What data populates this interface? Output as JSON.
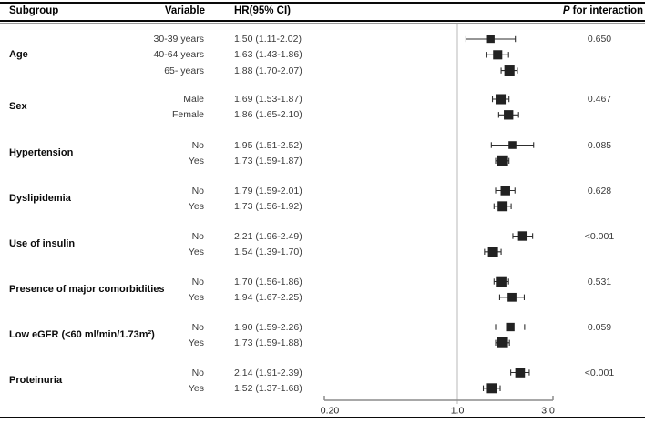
{
  "header": {
    "subgroup": "Subgroup",
    "variable": "Variable",
    "hr": "HR(95% CI)",
    "p_italic": "P",
    "p_rest": " for interaction"
  },
  "chart_data": {
    "type": "forest",
    "scale": "log",
    "xlim": [
      0.2,
      3.0
    ],
    "ref_line": 1.0,
    "x_ticks": [
      {
        "label": "0.20",
        "value": 0.2
      },
      {
        "label": "1.0",
        "value": 1.0
      },
      {
        "label": "3.0",
        "value": 3.0
      }
    ],
    "colors": {
      "marker": "#222222",
      "whisker": "#2e2e2e",
      "ref_line": "#b8b8b8",
      "axis": "#8c8c8c"
    },
    "groups": [
      {
        "subgroup": "Age",
        "p_for_interaction": "0.650",
        "rows": [
          {
            "variable": "30-39 years",
            "hr_text": "1.50 (1.11-2.02)",
            "hr": 1.5,
            "ci_low": 1.11,
            "ci_high": 2.02
          },
          {
            "variable": "40-64 years",
            "hr_text": "1.63 (1.43-1.86)",
            "hr": 1.63,
            "ci_low": 1.43,
            "ci_high": 1.86
          },
          {
            "variable": "65- years",
            "hr_text": "1.88 (1.70-2.07)",
            "hr": 1.88,
            "ci_low": 1.7,
            "ci_high": 2.07
          }
        ]
      },
      {
        "subgroup": "Sex",
        "p_for_interaction": "0.467",
        "rows": [
          {
            "variable": "Male",
            "hr_text": "1.69 (1.53-1.87)",
            "hr": 1.69,
            "ci_low": 1.53,
            "ci_high": 1.87
          },
          {
            "variable": "Female",
            "hr_text": "1.86 (1.65-2.10)",
            "hr": 1.86,
            "ci_low": 1.65,
            "ci_high": 2.1
          }
        ]
      },
      {
        "subgroup": "Hypertension",
        "p_for_interaction": "0.085",
        "rows": [
          {
            "variable": "No",
            "hr_text": "1.95 (1.51-2.52)",
            "hr": 1.95,
            "ci_low": 1.51,
            "ci_high": 2.52
          },
          {
            "variable": "Yes",
            "hr_text": "1.73 (1.59-1.87)",
            "hr": 1.73,
            "ci_low": 1.59,
            "ci_high": 1.87
          }
        ]
      },
      {
        "subgroup": "Dyslipidemia",
        "p_for_interaction": "0.628",
        "rows": [
          {
            "variable": "No",
            "hr_text": "1.79 (1.59-2.01)",
            "hr": 1.79,
            "ci_low": 1.59,
            "ci_high": 2.01
          },
          {
            "variable": "Yes",
            "hr_text": "1.73 (1.56-1.92)",
            "hr": 1.73,
            "ci_low": 1.56,
            "ci_high": 1.92
          }
        ]
      },
      {
        "subgroup": "Use of insulin",
        "p_for_interaction": "<0.001",
        "rows": [
          {
            "variable": "No",
            "hr_text": "2.21 (1.96-2.49)",
            "hr": 2.21,
            "ci_low": 1.96,
            "ci_high": 2.49
          },
          {
            "variable": "Yes",
            "hr_text": "1.54 (1.39-1.70)",
            "hr": 1.54,
            "ci_low": 1.39,
            "ci_high": 1.7
          }
        ]
      },
      {
        "subgroup": "Presence of major comorbidities",
        "p_for_interaction": "0.531",
        "rows": [
          {
            "variable": "No",
            "hr_text": "1.70 (1.56-1.86)",
            "hr": 1.7,
            "ci_low": 1.56,
            "ci_high": 1.86
          },
          {
            "variable": "Yes",
            "hr_text": "1.94 (1.67-2.25)",
            "hr": 1.94,
            "ci_low": 1.67,
            "ci_high": 2.25
          }
        ]
      },
      {
        "subgroup": "Low eGFR (<60 ml/min/1.73m²)",
        "p_for_interaction": "0.059",
        "rows": [
          {
            "variable": "No",
            "hr_text": "1.90 (1.59-2.26)",
            "hr": 1.9,
            "ci_low": 1.59,
            "ci_high": 2.26
          },
          {
            "variable": "Yes",
            "hr_text": "1.73 (1.59-1.88)",
            "hr": 1.73,
            "ci_low": 1.59,
            "ci_high": 1.88
          }
        ]
      },
      {
        "subgroup": "Proteinuria",
        "p_for_interaction": "<0.001",
        "rows": [
          {
            "variable": "No",
            "hr_text": "2.14 (1.91-2.39)",
            "hr": 2.14,
            "ci_low": 1.91,
            "ci_high": 2.39
          },
          {
            "variable": "Yes",
            "hr_text": "1.52 (1.37-1.68)",
            "hr": 1.52,
            "ci_low": 1.37,
            "ci_high": 1.68
          }
        ]
      }
    ]
  }
}
